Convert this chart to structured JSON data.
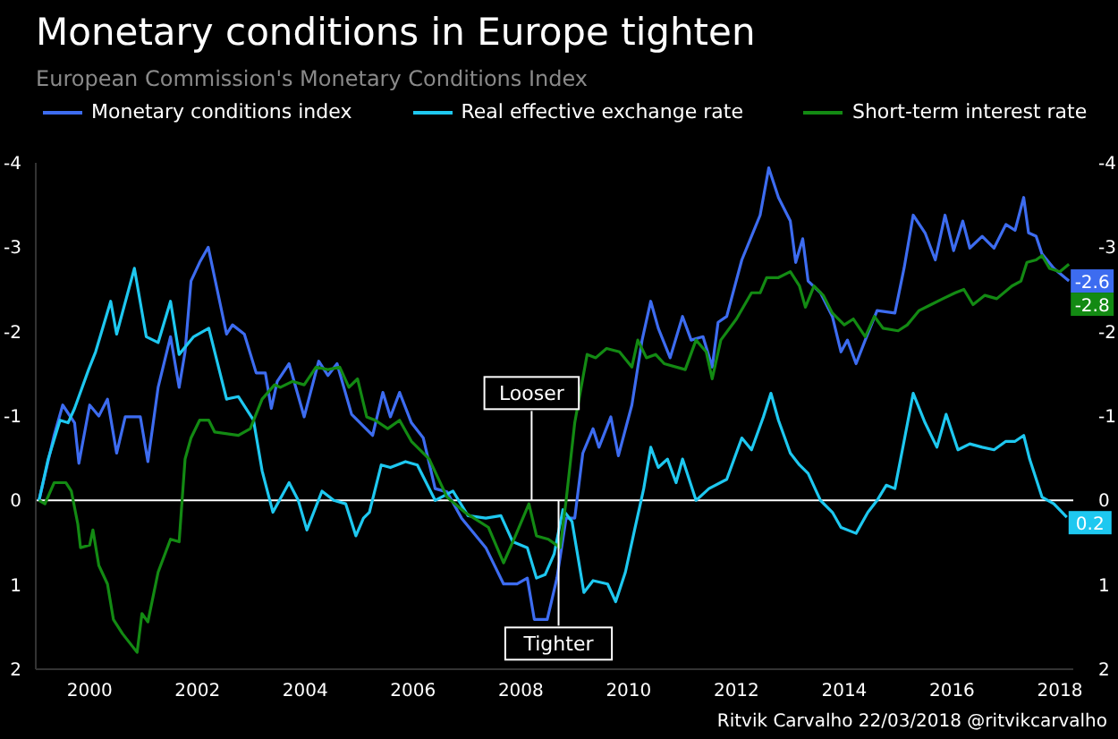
{
  "chart_data": {
    "type": "line",
    "title": "Monetary conditions in Europe tighten",
    "subtitle": "European Commission's Monetary Conditions Index",
    "xlim": [
      1999,
      2018.25
    ],
    "xticks": [
      2000,
      2002,
      2004,
      2006,
      2008,
      2010,
      2012,
      2014,
      2016,
      2018
    ],
    "ylim": [
      2,
      -4
    ],
    "yticks": [
      -4,
      -3,
      -2,
      -1,
      0,
      1,
      2
    ],
    "y2lim": [
      2,
      -4
    ],
    "y2ticks": [
      -4,
      -3,
      -2,
      -1,
      0,
      1,
      2
    ],
    "legend": "top",
    "marker": "none",
    "line_style": "solid",
    "ref_lines": [
      {
        "axis": "y",
        "value": 0,
        "color": "#ffffff"
      }
    ],
    "annotations": [
      {
        "text": "Looser",
        "x": 2008.2,
        "y": 0
      },
      {
        "text": "Tighter",
        "x": 2008.7,
        "y": 0
      },
      "Ritvik Carvalho 22/03/2018 @ritvikcarvalho"
    ],
    "series": [
      {
        "name": "Monetary conditions index",
        "color": "#3d6cf0",
        "x": [
          1999.06,
          1999.34,
          1999.5,
          1999.72,
          1999.8,
          2000,
          2000.17,
          2000.33,
          2000.5,
          2000.66,
          2000.94,
          2001.08,
          2001.27,
          2001.5,
          2001.66,
          2001.77,
          2001.88,
          2002.04,
          2002.2,
          2002.54,
          2002.65,
          2002.87,
          2003.09,
          2003.26,
          2003.37,
          2003.48,
          2003.7,
          2003.98,
          2004.25,
          2004.42,
          2004.59,
          2004.86,
          2005.25,
          2005.44,
          2005.58,
          2005.75,
          2005.97,
          2006.19,
          2006.41,
          2006.63,
          2006.9,
          2007.35,
          2007.68,
          2007.93,
          2008.12,
          2008.25,
          2008.49,
          2008.67,
          2008.84,
          2009.0,
          2009.15,
          2009.34,
          2009.45,
          2009.67,
          2009.81,
          2010.06,
          2010.25,
          2010.41,
          2010.55,
          2010.77,
          2011.0,
          2011.16,
          2011.38,
          2011.55,
          2011.66,
          2011.82,
          2012.1,
          2012.44,
          2012.6,
          2012.78,
          2013.0,
          2013.1,
          2013.23,
          2013.33,
          2013.56,
          2013.78,
          2013.94,
          2014.06,
          2014.22,
          2014.39,
          2014.61,
          2014.94,
          2015.11,
          2015.28,
          2015.5,
          2015.69,
          2015.87,
          2016.03,
          2016.2,
          2016.33,
          2016.56,
          2016.78,
          2017.0,
          2017.17,
          2017.33,
          2017.42,
          2017.56,
          2017.67,
          2017.89,
          2018.17
        ],
        "values": [
          0,
          -0.77,
          -1.13,
          -0.92,
          -0.44,
          -1.13,
          -1.0,
          -1.2,
          -0.56,
          -0.99,
          -0.99,
          -0.46,
          -1.34,
          -1.94,
          -1.34,
          -1.76,
          -2.6,
          -2.82,
          -3.0,
          -1.97,
          -2.08,
          -1.97,
          -1.51,
          -1.51,
          -1.09,
          -1.41,
          -1.62,
          -0.99,
          -1.65,
          -1.48,
          -1.62,
          -1.02,
          -0.77,
          -1.28,
          -0.99,
          -1.28,
          -0.92,
          -0.74,
          -0.14,
          -0.1,
          0.21,
          0.56,
          0.99,
          0.99,
          0.92,
          1.41,
          1.41,
          0.92,
          0.21,
          0.21,
          -0.56,
          -0.85,
          -0.63,
          -0.99,
          -0.53,
          -1.13,
          -1.9,
          -2.36,
          -2.04,
          -1.69,
          -2.18,
          -1.9,
          -1.94,
          -1.58,
          -2.11,
          -2.18,
          -2.85,
          -3.38,
          -3.94,
          -3.59,
          -3.31,
          -2.82,
          -3.1,
          -2.6,
          -2.46,
          -2.18,
          -1.76,
          -1.9,
          -1.62,
          -1.9,
          -2.25,
          -2.22,
          -2.75,
          -3.38,
          -3.17,
          -2.85,
          -3.38,
          -2.96,
          -3.31,
          -2.99,
          -3.13,
          -2.99,
          -3.27,
          -3.2,
          -3.59,
          -3.17,
          -3.13,
          -2.92,
          -2.75,
          -2.6
        ],
        "value_labels": [
          null,
          null,
          null,
          null,
          null,
          null,
          null,
          null,
          null,
          null,
          null,
          null,
          null,
          null,
          null,
          null,
          null,
          null,
          null,
          null,
          null,
          null,
          null,
          null,
          null,
          null,
          null,
          null,
          null,
          null,
          null,
          null,
          null,
          null,
          null,
          null,
          null,
          null,
          null,
          null,
          null,
          null,
          null,
          null,
          null,
          null,
          null,
          null,
          null,
          null,
          null,
          null,
          null,
          null,
          null,
          null,
          null,
          null,
          null,
          null,
          null,
          null,
          null,
          null,
          null,
          null,
          null,
          null,
          null,
          null,
          null,
          null,
          null,
          null,
          null,
          null,
          null,
          null,
          null,
          null,
          null,
          null,
          null,
          null,
          null,
          null,
          null,
          null,
          null,
          null,
          null,
          null,
          null,
          null,
          null,
          null,
          null,
          null,
          null,
          "-2.6"
        ]
      },
      {
        "name": "Real effective exchange rate",
        "color": "#1ec8f0",
        "x": [
          1999.06,
          1999.23,
          1999.45,
          1999.6,
          1999.72,
          1999.98,
          2000.11,
          2000.39,
          2000.5,
          2000.83,
          2001.05,
          2001.27,
          2001.5,
          2001.66,
          2001.93,
          2002.21,
          2002.54,
          2002.76,
          2003.04,
          2003.2,
          2003.4,
          2003.7,
          2003.87,
          2004.03,
          2004.31,
          2004.53,
          2004.75,
          2004.94,
          2005.08,
          2005.19,
          2005.41,
          2005.58,
          2005.86,
          2006.08,
          2006.41,
          2006.74,
          2007.02,
          2007.35,
          2007.63,
          2007.85,
          2008.12,
          2008.29,
          2008.45,
          2008.62,
          2008.78,
          2008.95,
          2009.17,
          2009.34,
          2009.61,
          2009.76,
          2009.94,
          2010.11,
          2010.28,
          2010.41,
          2010.55,
          2010.72,
          2010.88,
          2011.0,
          2011.25,
          2011.49,
          2011.82,
          2012.1,
          2012.28,
          2012.5,
          2012.64,
          2012.78,
          2013.0,
          2013.17,
          2013.33,
          2013.56,
          2013.78,
          2013.94,
          2014.22,
          2014.44,
          2014.61,
          2014.78,
          2014.94,
          2015.11,
          2015.28,
          2015.5,
          2015.72,
          2015.89,
          2016.11,
          2016.33,
          2016.56,
          2016.78,
          2017.0,
          2017.17,
          2017.33,
          2017.44,
          2017.67,
          2017.89,
          2018.13
        ],
        "values": [
          0,
          -0.49,
          -0.95,
          -0.92,
          -1.09,
          -1.55,
          -1.76,
          -2.36,
          -1.97,
          -2.75,
          -1.94,
          -1.87,
          -2.36,
          -1.73,
          -1.94,
          -2.04,
          -1.2,
          -1.23,
          -0.95,
          -0.35,
          0.14,
          -0.21,
          0,
          0.35,
          -0.11,
          0,
          0.04,
          0.42,
          0.21,
          0.14,
          -0.42,
          -0.39,
          -0.46,
          -0.42,
          0,
          -0.11,
          0.18,
          0.21,
          0.18,
          0.49,
          0.56,
          0.92,
          0.88,
          0.63,
          0.11,
          0.25,
          1.09,
          0.95,
          0.99,
          1.2,
          0.85,
          0.35,
          -0.14,
          -0.63,
          -0.39,
          -0.49,
          -0.21,
          -0.49,
          0,
          -0.14,
          -0.25,
          -0.74,
          -0.6,
          -0.99,
          -1.27,
          -0.95,
          -0.56,
          -0.42,
          -0.32,
          0,
          0.14,
          0.32,
          0.39,
          0.14,
          0,
          -0.18,
          -0.14,
          -0.7,
          -1.27,
          -0.92,
          -0.63,
          -1.02,
          -0.6,
          -0.67,
          -0.63,
          -0.6,
          -0.7,
          -0.7,
          -0.77,
          -0.49,
          -0.04,
          0.04,
          0.2
        ],
        "value_labels": [
          null,
          null,
          null,
          null,
          null,
          null,
          null,
          null,
          null,
          null,
          null,
          null,
          null,
          null,
          null,
          null,
          null,
          null,
          null,
          null,
          null,
          null,
          null,
          null,
          null,
          null,
          null,
          null,
          null,
          null,
          null,
          null,
          null,
          null,
          null,
          null,
          null,
          null,
          null,
          null,
          null,
          null,
          null,
          null,
          null,
          null,
          null,
          null,
          null,
          null,
          null,
          null,
          null,
          null,
          null,
          null,
          null,
          null,
          null,
          null,
          null,
          null,
          null,
          null,
          null,
          null,
          null,
          null,
          null,
          null,
          null,
          null,
          null,
          null,
          null,
          null,
          null,
          null,
          null,
          null,
          null,
          null,
          null,
          null,
          null,
          null,
          null,
          null,
          null,
          null,
          null,
          null,
          "0.2"
        ]
      },
      {
        "name": "Short-term interest rate",
        "color": "#138a13",
        "x": [
          1999.06,
          1999.17,
          1999.34,
          1999.56,
          1999.66,
          1999.78,
          1999.83,
          2000.0,
          2000.06,
          2000.17,
          2000.33,
          2000.44,
          2000.61,
          2000.88,
          2000.97,
          2001.08,
          2001.27,
          2001.5,
          2001.66,
          2001.77,
          2001.88,
          2002.04,
          2002.21,
          2002.32,
          2002.76,
          2002.98,
          2003.2,
          2003.43,
          2003.54,
          2003.76,
          2003.98,
          2004.2,
          2004.42,
          2004.64,
          2004.81,
          2004.97,
          2005.14,
          2005.3,
          2005.53,
          2005.75,
          2005.97,
          2006.3,
          2006.63,
          2006.96,
          2007.4,
          2007.68,
          2007.9,
          2008.15,
          2008.29,
          2008.51,
          2008.73,
          2008.84,
          2009.0,
          2009.23,
          2009.39,
          2009.59,
          2009.83,
          2010.06,
          2010.17,
          2010.33,
          2010.5,
          2010.66,
          2011.05,
          2011.25,
          2011.44,
          2011.55,
          2011.71,
          2012.0,
          2012.28,
          2012.44,
          2012.56,
          2012.78,
          2013.0,
          2013.17,
          2013.28,
          2013.44,
          2013.61,
          2013.78,
          2014.0,
          2014.17,
          2014.39,
          2014.56,
          2014.72,
          2015.0,
          2015.17,
          2015.39,
          2015.61,
          2015.83,
          2016.06,
          2016.22,
          2016.39,
          2016.61,
          2016.83,
          2017.11,
          2017.28,
          2017.39,
          2017.56,
          2017.67,
          2017.81,
          2018.0,
          2018.17
        ],
        "values": [
          0,
          0.04,
          -0.21,
          -0.21,
          -0.11,
          0.28,
          0.56,
          0.53,
          0.35,
          0.77,
          0.99,
          1.41,
          1.58,
          1.8,
          1.34,
          1.44,
          0.85,
          0.46,
          0.49,
          -0.49,
          -0.74,
          -0.95,
          -0.95,
          -0.81,
          -0.77,
          -0.85,
          -1.2,
          -1.37,
          -1.34,
          -1.41,
          -1.37,
          -1.58,
          -1.55,
          -1.58,
          -1.34,
          -1.44,
          -0.99,
          -0.95,
          -0.85,
          -0.95,
          -0.7,
          -0.49,
          -0.04,
          0.14,
          0.32,
          0.74,
          0.42,
          0.04,
          0.42,
          0.46,
          0.56,
          0,
          -0.92,
          -1.73,
          -1.69,
          -1.8,
          -1.76,
          -1.58,
          -1.9,
          -1.69,
          -1.73,
          -1.62,
          -1.55,
          -1.9,
          -1.76,
          -1.44,
          -1.9,
          -2.15,
          -2.46,
          -2.46,
          -2.64,
          -2.64,
          -2.71,
          -2.54,
          -2.29,
          -2.54,
          -2.43,
          -2.22,
          -2.08,
          -2.15,
          -1.94,
          -2.18,
          -2.04,
          -2.01,
          -2.08,
          -2.25,
          -2.32,
          -2.39,
          -2.46,
          -2.5,
          -2.32,
          -2.43,
          -2.39,
          -2.54,
          -2.6,
          -2.82,
          -2.85,
          -2.9,
          -2.75,
          -2.71,
          -2.8
        ],
        "value_labels": [
          null,
          null,
          null,
          null,
          null,
          null,
          null,
          null,
          null,
          null,
          null,
          null,
          null,
          null,
          null,
          null,
          null,
          null,
          null,
          null,
          null,
          null,
          null,
          null,
          null,
          null,
          null,
          null,
          null,
          null,
          null,
          null,
          null,
          null,
          null,
          null,
          null,
          null,
          null,
          null,
          null,
          null,
          null,
          null,
          null,
          null,
          null,
          null,
          null,
          null,
          null,
          null,
          null,
          null,
          null,
          null,
          null,
          null,
          null,
          null,
          null,
          null,
          null,
          null,
          null,
          null,
          null,
          null,
          null,
          null,
          null,
          null,
          null,
          null,
          null,
          null,
          null,
          null,
          null,
          null,
          null,
          null,
          null,
          null,
          null,
          null,
          null,
          null,
          null,
          null,
          null,
          null,
          null,
          null,
          null,
          null,
          null,
          null,
          null,
          null,
          "-2.8"
        ]
      }
    ]
  }
}
